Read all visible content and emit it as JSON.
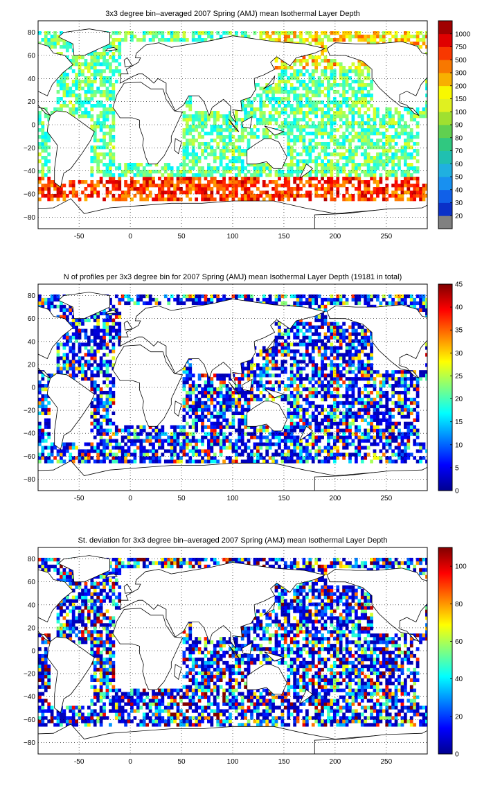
{
  "chart_data": [
    {
      "type": "heatmap",
      "title": "3x3 degree bin–averaged 2007 Spring (AMJ) mean Isothermal Layer Depth",
      "xlabel": "",
      "ylabel": "",
      "xlim": [
        -90,
        290
      ],
      "ylim": [
        -90,
        90
      ],
      "x_ticks": [
        "-50",
        "0",
        "50",
        "100",
        "150",
        "200",
        "250"
      ],
      "y_ticks": [
        "80",
        "60",
        "40",
        "20",
        "0",
        "−20",
        "−40",
        "−60",
        "−80"
      ],
      "grid": true,
      "colorbar": {
        "scale": "categorical",
        "labels": [
          "20",
          "30",
          "40",
          "50",
          "60",
          "70",
          "80",
          "90",
          "100",
          "150",
          "200",
          "300",
          "500",
          "750",
          "1000"
        ],
        "colors": [
          "#808080",
          "#0a30c8",
          "#1060e8",
          "#1890f0",
          "#20b0e0",
          "#20c0b0",
          "#30c880",
          "#60d050",
          "#a0e030",
          "#e0f020",
          "#f8f800",
          "#f8b000",
          "#f87800",
          "#f83800",
          "#e00000",
          "#a00000"
        ]
      }
    },
    {
      "type": "heatmap",
      "title": "N of profiles per 3x3 degree bin for 2007 Spring (AMJ) mean Isothermal Layer Depth  (19181 in total)",
      "xlabel": "",
      "ylabel": "",
      "xlim": [
        -90,
        290
      ],
      "ylim": [
        -90,
        90
      ],
      "x_ticks": [
        "-50",
        "0",
        "50",
        "100",
        "150",
        "200",
        "250"
      ],
      "y_ticks": [
        "80",
        "60",
        "40",
        "20",
        "0",
        "−20",
        "−40",
        "−60",
        "−80"
      ],
      "grid": true,
      "colorbar": {
        "scale": "continuous",
        "range": [
          0,
          45
        ],
        "labels": [
          "45",
          "40",
          "35",
          "30",
          "25",
          "20",
          "15",
          "10",
          "5",
          "0"
        ]
      }
    },
    {
      "type": "heatmap",
      "title": "St. deviation for 3x3 degree bin–averaged 2007 Spring (AMJ) mean Isothermal Layer Depth",
      "xlabel": "",
      "ylabel": "",
      "xlim": [
        -90,
        290
      ],
      "ylim": [
        -90,
        90
      ],
      "x_ticks": [
        "-50",
        "0",
        "50",
        "100",
        "150",
        "200",
        "250"
      ],
      "y_ticks": [
        "80",
        "60",
        "40",
        "20",
        "0",
        "−20",
        "−40",
        "−60",
        "−80"
      ],
      "grid": true,
      "colorbar": {
        "scale": "continuous",
        "range": [
          0,
          110
        ],
        "labels": [
          "100",
          "80",
          "60",
          "40",
          "20",
          "0"
        ]
      }
    }
  ]
}
